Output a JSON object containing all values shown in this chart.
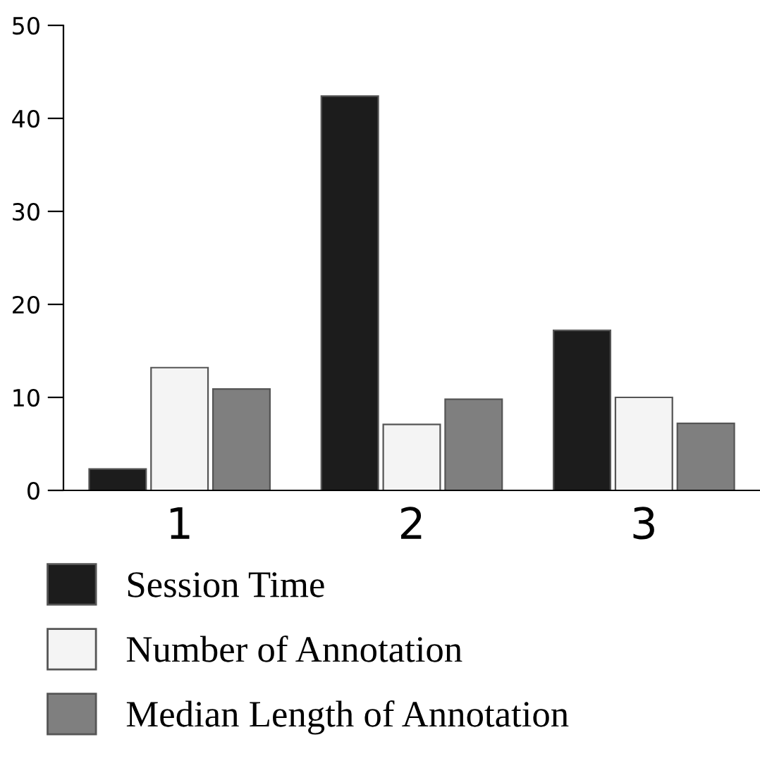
{
  "chart_data": {
    "type": "bar",
    "categories": [
      "1",
      "2",
      "3"
    ],
    "series": [
      {
        "name": "Session Time",
        "color": "#1c1c1c",
        "values": [
          2.3,
          42.4,
          17.2
        ]
      },
      {
        "name": "Number of Annotation",
        "color": "#f4f4f4",
        "values": [
          13.2,
          7.1,
          10
        ]
      },
      {
        "name": "Median Length of Annotation",
        "color": "#7f7f7f",
        "values": [
          10.9,
          9.8,
          7.2
        ]
      }
    ],
    "ylim": [
      0,
      50
    ],
    "yticks": [
      0,
      10,
      20,
      30,
      40,
      50
    ],
    "grid": false,
    "legend": "bottom"
  }
}
